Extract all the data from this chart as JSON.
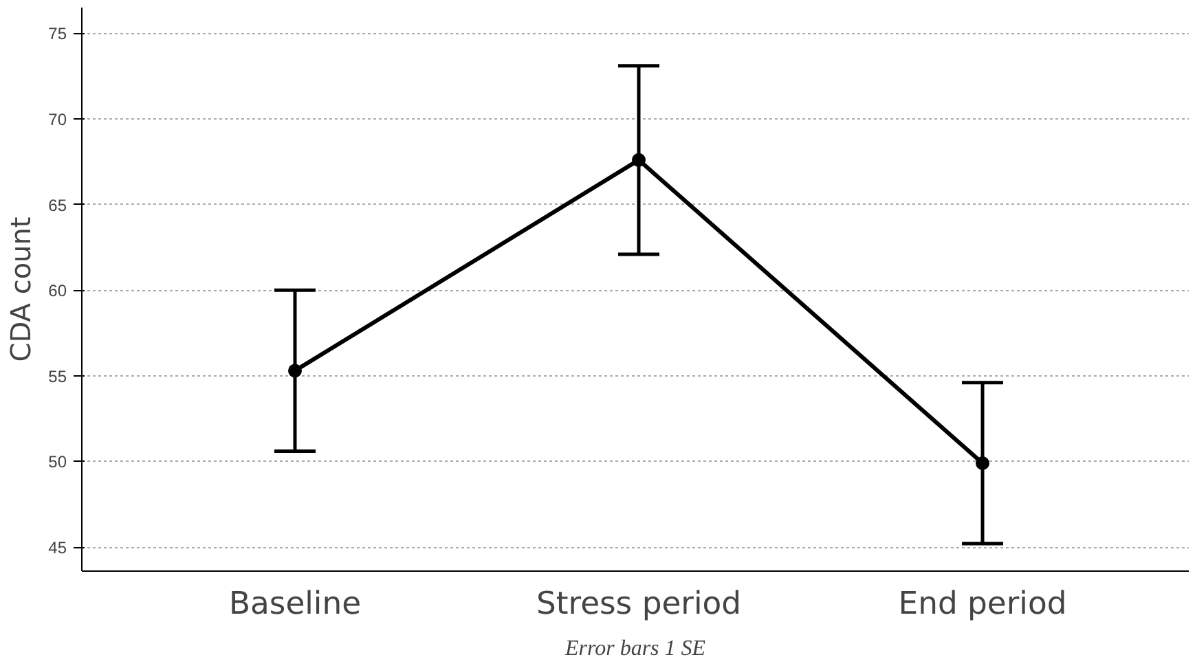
{
  "chart_data": {
    "type": "line",
    "ylabel": "CDA count",
    "categories": [
      "Baseline",
      "Stress period",
      "End period"
    ],
    "values": [
      55.3,
      67.6,
      49.9
    ],
    "errors": [
      4.7,
      5.5,
      4.7
    ],
    "color": "#000000",
    "marker": "circle",
    "line_style": "solid",
    "ylim": [
      43.6,
      76.5
    ],
    "yticks": [
      45,
      50,
      55,
      60,
      65,
      70,
      75
    ],
    "grid": "y",
    "annotations": [
      "Error bars 1 SE"
    ]
  }
}
